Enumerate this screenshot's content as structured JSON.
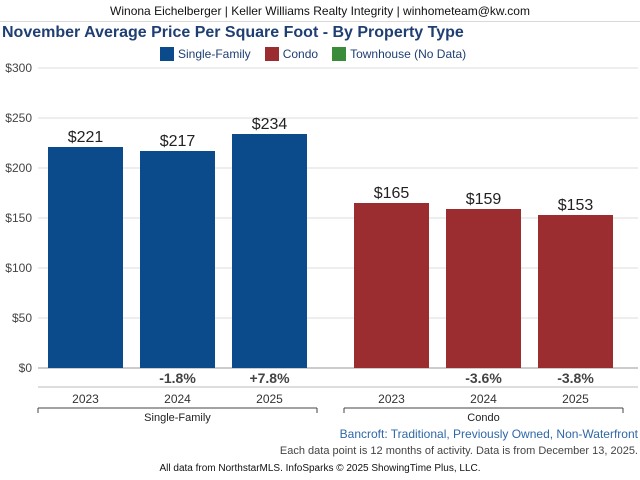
{
  "header": {
    "contact": "Winona Eichelberger | Keller Williams Realty Integrity | winhometeam@kw.com"
  },
  "colors": {
    "single_family": "#0b4a8b",
    "condo": "#9b2d30",
    "townhouse": "#3a8c3a",
    "title": "#1f3f73"
  },
  "legend": [
    {
      "label": "Single-Family",
      "color": "#0b4a8b"
    },
    {
      "label": "Condo",
      "color": "#9b2d30"
    },
    {
      "label": "Townhouse (No Data)",
      "color": "#3a8c3a"
    }
  ],
  "chart_data": {
    "type": "bar",
    "title": "November Average Price Per Square Foot - By Property Type",
    "ylim": [
      0,
      300
    ],
    "yticks": [
      "$0",
      "$50",
      "$100",
      "$150",
      "$200",
      "$250",
      "$300"
    ],
    "grid": true,
    "legend_position": "top",
    "groups": [
      {
        "name": "Single-Family",
        "color": "#0b4a8b",
        "bars": [
          {
            "year": "2023",
            "value": 221,
            "label": "$221",
            "change": ""
          },
          {
            "year": "2024",
            "value": 217,
            "label": "$217",
            "change": "-1.8%"
          },
          {
            "year": "2025",
            "value": 234,
            "label": "$234",
            "change": "+7.8%"
          }
        ]
      },
      {
        "name": "Condo",
        "color": "#9b2d30",
        "bars": [
          {
            "year": "2023",
            "value": 165,
            "label": "$165",
            "change": ""
          },
          {
            "year": "2024",
            "value": 159,
            "label": "$159",
            "change": "-3.6%"
          },
          {
            "year": "2025",
            "value": 153,
            "label": "$153",
            "change": "-3.8%"
          }
        ]
      }
    ]
  },
  "footer": {
    "subtitle": "Bancroft: Traditional, Previously Owned, Non-Waterfront",
    "note": "Each data point is 12 months of activity. Data is from December 13, 2025.",
    "credit": "All data from NorthstarMLS. InfoSparks © 2025 ShowingTime Plus, LLC."
  }
}
